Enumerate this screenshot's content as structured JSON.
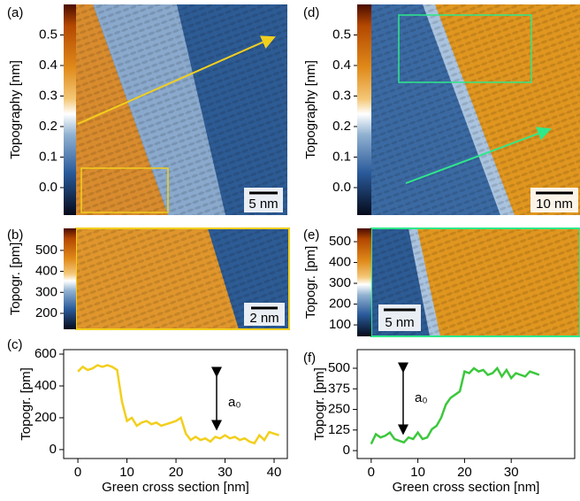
{
  "chart_data": [
    {
      "type": "heatmap",
      "panel": "(a)",
      "ylabel": "Topography [nm]",
      "scale_bar": "5 nm",
      "ylim": [
        -0.09,
        0.6
      ],
      "yticks": [
        {
          "value": 0,
          "label": "0.0"
        },
        0.1,
        0.2,
        0.3,
        0.4,
        0.5
      ]
    },
    {
      "type": "heatmap",
      "panel": "(b)",
      "ylabel": "Topogr. [pm]",
      "scale_bar": "2 nm",
      "ylim": [
        124,
        605
      ],
      "yticks": [
        200,
        300,
        400,
        500
      ]
    },
    {
      "type": "line",
      "panel": "(c)",
      "ylabel": "Topogr. [pm]",
      "xlabel": "Green cross section [nm]",
      "annotation": "a₀",
      "color": "#f2cf1d",
      "xlim": [
        -2.9,
        42.7
      ],
      "ylim": [
        -56,
        628
      ],
      "xticks": [
        0,
        10,
        20,
        30,
        40
      ],
      "yticks": [
        0,
        200,
        400,
        600
      ],
      "x": [
        0,
        1,
        2,
        3,
        4,
        5,
        6,
        7,
        8,
        9,
        10,
        11,
        12,
        13,
        14,
        15,
        16,
        17,
        18,
        19,
        20,
        21,
        22,
        23,
        24,
        25,
        26,
        27,
        28,
        29,
        30,
        31,
        32,
        33,
        34,
        35,
        36,
        37,
        38,
        39,
        40,
        41
      ],
      "values": [
        490,
        520,
        500,
        510,
        530,
        520,
        530,
        520,
        500,
        300,
        180,
        200,
        150,
        170,
        180,
        160,
        170,
        150,
        160,
        170,
        180,
        200,
        100,
        60,
        80,
        60,
        70,
        50,
        80,
        70,
        90,
        70,
        80,
        60,
        70,
        50,
        40,
        90,
        60,
        110,
        100,
        90
      ]
    },
    {
      "type": "heatmap",
      "panel": "(d)",
      "ylabel": "Topography [nm]",
      "scale_bar": "10 nm",
      "ylim": [
        -0.09,
        0.6
      ],
      "yticks": [
        {
          "value": 0,
          "label": "0.0"
        },
        0.1,
        0.2,
        0.3,
        0.4,
        0.5
      ]
    },
    {
      "type": "heatmap",
      "panel": "(e)",
      "ylabel": "Topogr. [pm]",
      "scale_bar": "5 nm",
      "ylim": [
        45,
        564
      ],
      "yticks": [
        100,
        200,
        300,
        400,
        500
      ]
    },
    {
      "type": "line",
      "panel": "(f)",
      "ylabel": "Topogr. [pm]",
      "xlabel": "Green cross section [nm]",
      "annotation": "a₀",
      "color": "#3cc83c",
      "xlim": [
        -3,
        43.6
      ],
      "ylim": [
        -48,
        613
      ],
      "xticks": [
        0,
        10,
        20,
        30
      ],
      "yticks": [
        0,
        125,
        250,
        375,
        500
      ],
      "x": [
        0,
        1,
        2,
        3,
        4,
        5,
        6,
        7,
        8,
        9,
        10,
        11,
        12,
        13,
        14,
        15,
        16,
        17,
        18,
        19,
        20,
        21,
        22,
        23,
        24,
        25,
        26,
        27,
        28,
        29,
        30,
        31,
        32,
        33,
        34,
        35,
        36
      ],
      "values": [
        40,
        100,
        80,
        90,
        110,
        70,
        60,
        50,
        80,
        70,
        110,
        70,
        80,
        130,
        150,
        200,
        280,
        320,
        340,
        360,
        480,
        470,
        500,
        480,
        490,
        460,
        470,
        500,
        450,
        490,
        440,
        470,
        460,
        450,
        480,
        470,
        460
      ]
    }
  ]
}
